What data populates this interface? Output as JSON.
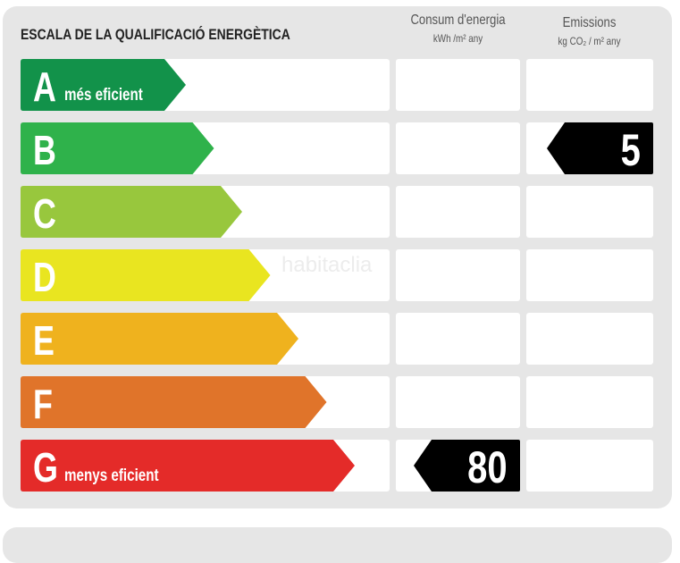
{
  "title": "ESCALA DE LA QUALIFICACIÓ ENERGÈTICA",
  "columns": {
    "consumption": {
      "label": "Consum d'energia",
      "unit": "kWh /m² any"
    },
    "emissions": {
      "label": "Emissions",
      "unit": "kg CO₂ / m² any"
    }
  },
  "ratings": [
    {
      "letter": "A",
      "desc": "més eficient",
      "color": "#12924a"
    },
    {
      "letter": "B",
      "desc": "",
      "color": "#2fb24b"
    },
    {
      "letter": "C",
      "desc": "",
      "color": "#98c73d"
    },
    {
      "letter": "D",
      "desc": "",
      "color": "#e9e520"
    },
    {
      "letter": "E",
      "desc": "",
      "color": "#efb21e"
    },
    {
      "letter": "F",
      "desc": "",
      "color": "#e0742a"
    },
    {
      "letter": "G",
      "desc": "menys eficient",
      "color": "#e42b29"
    }
  ],
  "consumption": {
    "rating": "G",
    "value": "80"
  },
  "emissions": {
    "rating": "B",
    "value": "5"
  },
  "watermark": "habitaclia"
}
